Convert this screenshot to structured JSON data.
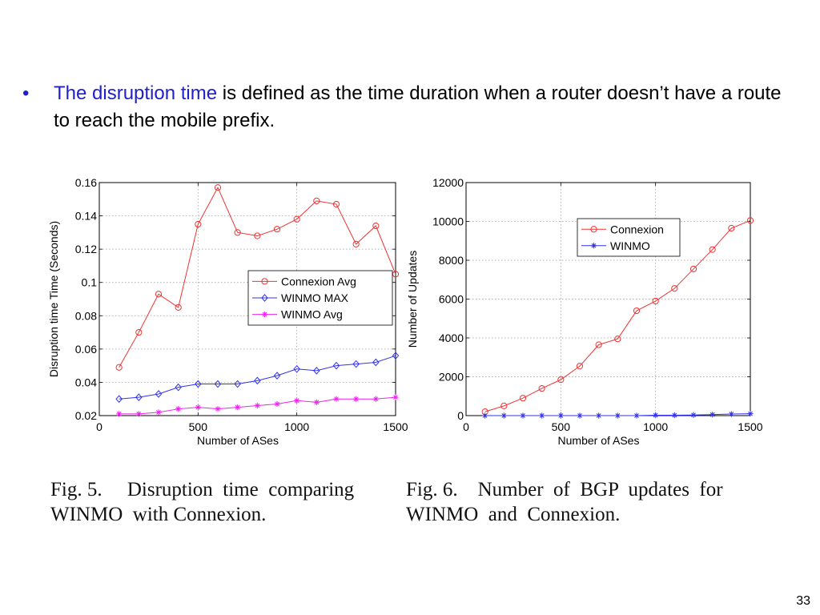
{
  "bullet": {
    "dot": "•",
    "highlight": "The disruption time",
    "rest": " is defined as the time duration when a router doesn’t have a route to reach the mobile prefix."
  },
  "captions": {
    "fig5_line1": "Fig. 5.     Disruption  time  comparing",
    "fig5_line2": "WINMO  with Connexion.",
    "fig6_line1": "Fig. 6.    Number  of  BGP  updates  for",
    "fig6_line2": "WINMO  and  Connexion."
  },
  "slide_number": "33",
  "chart_data": [
    {
      "type": "line",
      "title": "",
      "xlabel": "Number of ASes",
      "ylabel": "Disruption time Time (Seconds)",
      "xlim": [
        0,
        1500
      ],
      "ylim": [
        0.02,
        0.16
      ],
      "xticks": [
        0,
        500,
        1000,
        1500
      ],
      "xtick_labels": [
        "0",
        "500",
        "1000",
        "1500"
      ],
      "yticks": [
        0.02,
        0.04,
        0.06,
        0.08,
        0.1,
        0.12,
        0.14,
        0.16
      ],
      "ytick_labels": [
        "0.02",
        "0.04",
        "0.06",
        "0.08",
        "0.1",
        "0.12",
        "0.14",
        "0.16"
      ],
      "grid": true,
      "legend": "center-right",
      "x": [
        100,
        200,
        300,
        400,
        500,
        600,
        700,
        800,
        900,
        1000,
        1100,
        1200,
        1300,
        1400,
        1500
      ],
      "series": [
        {
          "name": "Connexion Avg",
          "color": "#ee3333",
          "marker": "circle",
          "values": [
            0.049,
            0.07,
            0.093,
            0.085,
            0.135,
            0.157,
            0.13,
            0.128,
            0.132,
            0.138,
            0.149,
            0.147,
            0.123,
            0.134,
            0.105
          ]
        },
        {
          "name": "WINMO MAX",
          "color": "#3333ee",
          "marker": "diamond",
          "values": [
            0.03,
            0.031,
            0.033,
            0.037,
            0.039,
            0.039,
            0.039,
            0.041,
            0.044,
            0.048,
            0.047,
            0.05,
            0.051,
            0.052,
            0.056
          ]
        },
        {
          "name": "WINMO Avg",
          "color": "#ee22ee",
          "marker": "star",
          "values": [
            0.021,
            0.021,
            0.022,
            0.024,
            0.025,
            0.024,
            0.025,
            0.026,
            0.027,
            0.029,
            0.028,
            0.03,
            0.03,
            0.03,
            0.031
          ]
        }
      ]
    },
    {
      "type": "line",
      "title": "",
      "xlabel": "Number of ASes",
      "ylabel": "Number of Updates",
      "xlim": [
        0,
        1500
      ],
      "ylim": [
        0,
        12000
      ],
      "xticks": [
        0,
        500,
        1000,
        1500
      ],
      "xtick_labels": [
        "0",
        "500",
        "1000",
        "1500"
      ],
      "yticks": [
        0,
        2000,
        4000,
        6000,
        8000,
        10000,
        12000
      ],
      "ytick_labels": [
        "0",
        "2000",
        "4000",
        "6000",
        "8000",
        "10000",
        "12000"
      ],
      "grid": true,
      "legend": "top-right",
      "x": [
        100,
        200,
        300,
        400,
        500,
        600,
        700,
        800,
        900,
        1000,
        1100,
        1200,
        1300,
        1400,
        1500
      ],
      "series": [
        {
          "name": "Connexion",
          "color": "#ee3333",
          "marker": "circle",
          "values": [
            200,
            500,
            900,
            1400,
            1850,
            2550,
            3650,
            3950,
            5400,
            5900,
            6550,
            7550,
            8550,
            9650,
            10050
          ]
        },
        {
          "name": "WINMO",
          "color": "#3333ee",
          "marker": "star",
          "values": [
            0,
            0,
            0,
            0,
            0,
            0,
            0,
            0,
            0,
            20,
            20,
            30,
            50,
            80,
            100
          ]
        }
      ]
    }
  ]
}
